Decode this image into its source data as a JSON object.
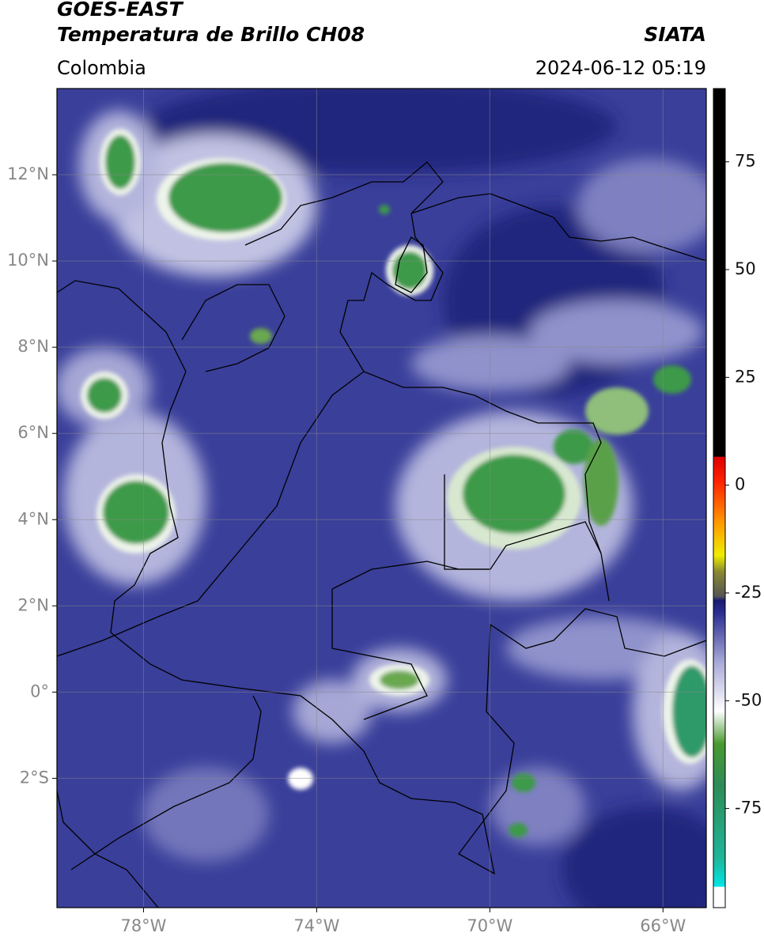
{
  "header": {
    "title_line1": "GOES-EAST",
    "title_line2": "Temperatura de Brillo CH08",
    "region": "Colombia",
    "source": "SIATA",
    "timestamp": "2024-06-12 05:19"
  },
  "map": {
    "xlim": [
      -80,
      -65
    ],
    "ylim": [
      -5,
      14
    ],
    "xticks": [
      {
        "value": -78,
        "label": "78°W"
      },
      {
        "value": -74,
        "label": "74°W"
      },
      {
        "value": -70,
        "label": "70°W"
      },
      {
        "value": -66,
        "label": "66°W"
      }
    ],
    "yticks": [
      {
        "value": 12,
        "label": "12°N"
      },
      {
        "value": 10,
        "label": "10°N"
      },
      {
        "value": 8,
        "label": "8°N"
      },
      {
        "value": 6,
        "label": "6°N"
      },
      {
        "value": 4,
        "label": "4°N"
      },
      {
        "value": 2,
        "label": "2°N"
      },
      {
        "value": 0,
        "label": "0°"
      },
      {
        "value": -2,
        "label": "2°S"
      }
    ],
    "grid": true
  },
  "colorbar": {
    "lim": [
      -98,
      92
    ],
    "ticks": [
      75,
      50,
      25,
      0,
      -25,
      -50,
      -75
    ]
  }
}
